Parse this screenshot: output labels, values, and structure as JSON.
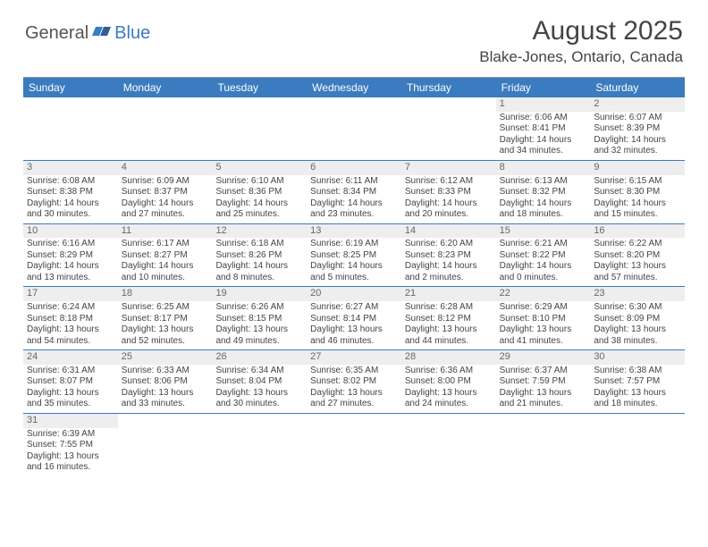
{
  "brand": {
    "part1": "General",
    "part2": "Blue"
  },
  "title": "August 2025",
  "location": "Blake-Jones, Ontario, Canada",
  "colors": {
    "header_bar": "#3b7bbf",
    "daynum_bg": "#eeeeee",
    "row_border": "#3b7bbf",
    "text": "#444444"
  },
  "weekdays": [
    "Sunday",
    "Monday",
    "Tuesday",
    "Wednesday",
    "Thursday",
    "Friday",
    "Saturday"
  ],
  "weeks": [
    [
      {
        "n": "",
        "sunrise": "",
        "sunset": "",
        "daylight": ""
      },
      {
        "n": "",
        "sunrise": "",
        "sunset": "",
        "daylight": ""
      },
      {
        "n": "",
        "sunrise": "",
        "sunset": "",
        "daylight": ""
      },
      {
        "n": "",
        "sunrise": "",
        "sunset": "",
        "daylight": ""
      },
      {
        "n": "",
        "sunrise": "",
        "sunset": "",
        "daylight": ""
      },
      {
        "n": "1",
        "sunrise": "Sunrise: 6:06 AM",
        "sunset": "Sunset: 8:41 PM",
        "daylight": "Daylight: 14 hours and 34 minutes."
      },
      {
        "n": "2",
        "sunrise": "Sunrise: 6:07 AM",
        "sunset": "Sunset: 8:39 PM",
        "daylight": "Daylight: 14 hours and 32 minutes."
      }
    ],
    [
      {
        "n": "3",
        "sunrise": "Sunrise: 6:08 AM",
        "sunset": "Sunset: 8:38 PM",
        "daylight": "Daylight: 14 hours and 30 minutes."
      },
      {
        "n": "4",
        "sunrise": "Sunrise: 6:09 AM",
        "sunset": "Sunset: 8:37 PM",
        "daylight": "Daylight: 14 hours and 27 minutes."
      },
      {
        "n": "5",
        "sunrise": "Sunrise: 6:10 AM",
        "sunset": "Sunset: 8:36 PM",
        "daylight": "Daylight: 14 hours and 25 minutes."
      },
      {
        "n": "6",
        "sunrise": "Sunrise: 6:11 AM",
        "sunset": "Sunset: 8:34 PM",
        "daylight": "Daylight: 14 hours and 23 minutes."
      },
      {
        "n": "7",
        "sunrise": "Sunrise: 6:12 AM",
        "sunset": "Sunset: 8:33 PM",
        "daylight": "Daylight: 14 hours and 20 minutes."
      },
      {
        "n": "8",
        "sunrise": "Sunrise: 6:13 AM",
        "sunset": "Sunset: 8:32 PM",
        "daylight": "Daylight: 14 hours and 18 minutes."
      },
      {
        "n": "9",
        "sunrise": "Sunrise: 6:15 AM",
        "sunset": "Sunset: 8:30 PM",
        "daylight": "Daylight: 14 hours and 15 minutes."
      }
    ],
    [
      {
        "n": "10",
        "sunrise": "Sunrise: 6:16 AM",
        "sunset": "Sunset: 8:29 PM",
        "daylight": "Daylight: 14 hours and 13 minutes."
      },
      {
        "n": "11",
        "sunrise": "Sunrise: 6:17 AM",
        "sunset": "Sunset: 8:27 PM",
        "daylight": "Daylight: 14 hours and 10 minutes."
      },
      {
        "n": "12",
        "sunrise": "Sunrise: 6:18 AM",
        "sunset": "Sunset: 8:26 PM",
        "daylight": "Daylight: 14 hours and 8 minutes."
      },
      {
        "n": "13",
        "sunrise": "Sunrise: 6:19 AM",
        "sunset": "Sunset: 8:25 PM",
        "daylight": "Daylight: 14 hours and 5 minutes."
      },
      {
        "n": "14",
        "sunrise": "Sunrise: 6:20 AM",
        "sunset": "Sunset: 8:23 PM",
        "daylight": "Daylight: 14 hours and 2 minutes."
      },
      {
        "n": "15",
        "sunrise": "Sunrise: 6:21 AM",
        "sunset": "Sunset: 8:22 PM",
        "daylight": "Daylight: 14 hours and 0 minutes."
      },
      {
        "n": "16",
        "sunrise": "Sunrise: 6:22 AM",
        "sunset": "Sunset: 8:20 PM",
        "daylight": "Daylight: 13 hours and 57 minutes."
      }
    ],
    [
      {
        "n": "17",
        "sunrise": "Sunrise: 6:24 AM",
        "sunset": "Sunset: 8:18 PM",
        "daylight": "Daylight: 13 hours and 54 minutes."
      },
      {
        "n": "18",
        "sunrise": "Sunrise: 6:25 AM",
        "sunset": "Sunset: 8:17 PM",
        "daylight": "Daylight: 13 hours and 52 minutes."
      },
      {
        "n": "19",
        "sunrise": "Sunrise: 6:26 AM",
        "sunset": "Sunset: 8:15 PM",
        "daylight": "Daylight: 13 hours and 49 minutes."
      },
      {
        "n": "20",
        "sunrise": "Sunrise: 6:27 AM",
        "sunset": "Sunset: 8:14 PM",
        "daylight": "Daylight: 13 hours and 46 minutes."
      },
      {
        "n": "21",
        "sunrise": "Sunrise: 6:28 AM",
        "sunset": "Sunset: 8:12 PM",
        "daylight": "Daylight: 13 hours and 44 minutes."
      },
      {
        "n": "22",
        "sunrise": "Sunrise: 6:29 AM",
        "sunset": "Sunset: 8:10 PM",
        "daylight": "Daylight: 13 hours and 41 minutes."
      },
      {
        "n": "23",
        "sunrise": "Sunrise: 6:30 AM",
        "sunset": "Sunset: 8:09 PM",
        "daylight": "Daylight: 13 hours and 38 minutes."
      }
    ],
    [
      {
        "n": "24",
        "sunrise": "Sunrise: 6:31 AM",
        "sunset": "Sunset: 8:07 PM",
        "daylight": "Daylight: 13 hours and 35 minutes."
      },
      {
        "n": "25",
        "sunrise": "Sunrise: 6:33 AM",
        "sunset": "Sunset: 8:06 PM",
        "daylight": "Daylight: 13 hours and 33 minutes."
      },
      {
        "n": "26",
        "sunrise": "Sunrise: 6:34 AM",
        "sunset": "Sunset: 8:04 PM",
        "daylight": "Daylight: 13 hours and 30 minutes."
      },
      {
        "n": "27",
        "sunrise": "Sunrise: 6:35 AM",
        "sunset": "Sunset: 8:02 PM",
        "daylight": "Daylight: 13 hours and 27 minutes."
      },
      {
        "n": "28",
        "sunrise": "Sunrise: 6:36 AM",
        "sunset": "Sunset: 8:00 PM",
        "daylight": "Daylight: 13 hours and 24 minutes."
      },
      {
        "n": "29",
        "sunrise": "Sunrise: 6:37 AM",
        "sunset": "Sunset: 7:59 PM",
        "daylight": "Daylight: 13 hours and 21 minutes."
      },
      {
        "n": "30",
        "sunrise": "Sunrise: 6:38 AM",
        "sunset": "Sunset: 7:57 PM",
        "daylight": "Daylight: 13 hours and 18 minutes."
      }
    ],
    [
      {
        "n": "31",
        "sunrise": "Sunrise: 6:39 AM",
        "sunset": "Sunset: 7:55 PM",
        "daylight": "Daylight: 13 hours and 16 minutes."
      },
      {
        "n": "",
        "sunrise": "",
        "sunset": "",
        "daylight": ""
      },
      {
        "n": "",
        "sunrise": "",
        "sunset": "",
        "daylight": ""
      },
      {
        "n": "",
        "sunrise": "",
        "sunset": "",
        "daylight": ""
      },
      {
        "n": "",
        "sunrise": "",
        "sunset": "",
        "daylight": ""
      },
      {
        "n": "",
        "sunrise": "",
        "sunset": "",
        "daylight": ""
      },
      {
        "n": "",
        "sunrise": "",
        "sunset": "",
        "daylight": ""
      }
    ]
  ]
}
